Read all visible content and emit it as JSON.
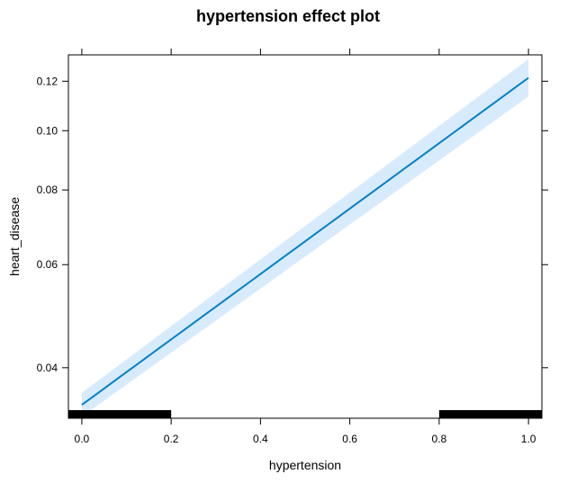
{
  "chart_data": {
    "type": "line",
    "title": "hypertension effect plot",
    "xlabel": "hypertension",
    "ylabel": "heart_disease",
    "xlim": [
      -0.03,
      1.03
    ],
    "ylim": [
      0.0327,
      0.132
    ],
    "y_scale": "logit",
    "x_ticks": [
      0.0,
      0.2,
      0.4,
      0.6,
      0.8,
      1.0
    ],
    "x_tick_labels": [
      "0.0",
      "0.2",
      "0.4",
      "0.6",
      "0.8",
      "1.0"
    ],
    "y_ticks": [
      0.04,
      0.06,
      0.08,
      0.1,
      0.12
    ],
    "y_tick_labels": [
      "0.04",
      "0.06",
      "0.08",
      "0.10",
      "0.12"
    ],
    "series": [
      {
        "x": [
          0.0,
          1.0
        ],
        "y": [
          0.0345,
          0.1215
        ],
        "lower": [
          0.0329,
          0.1135
        ],
        "upper": [
          0.0362,
          0.13
        ]
      }
    ],
    "rug": [
      {
        "from": -0.03,
        "to": 0.2
      },
      {
        "from": 0.8,
        "to": 1.03
      }
    ],
    "colors": {
      "line": "#0080C8",
      "band": "#D8EBFD",
      "rug": "#000000",
      "axis": "#000000"
    },
    "grid": false
  }
}
